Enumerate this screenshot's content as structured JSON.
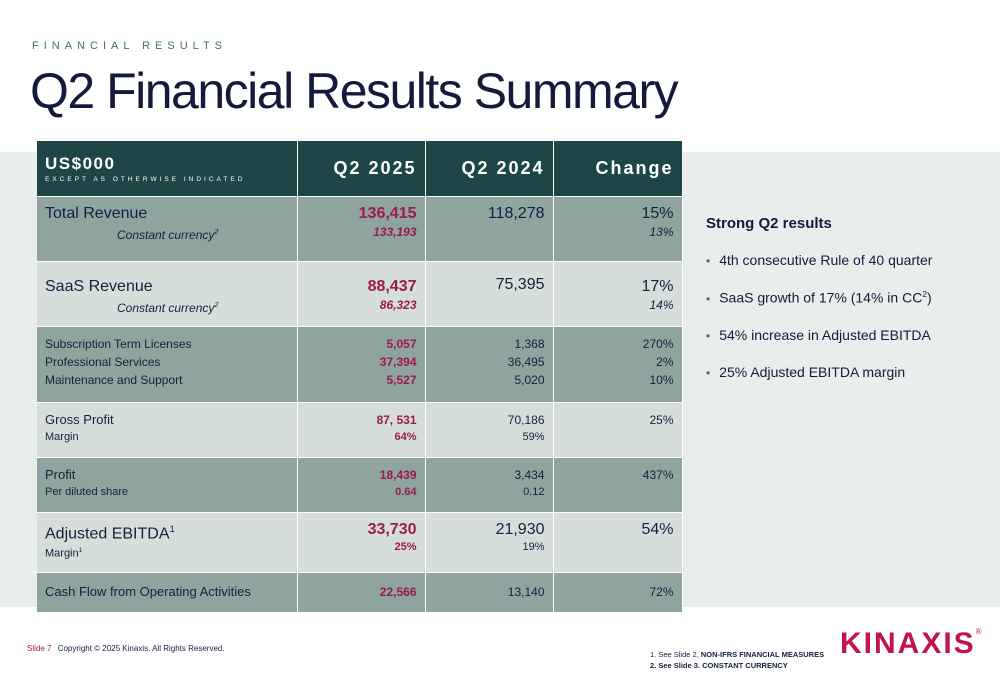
{
  "header": {
    "eyebrow": "FINANCIAL RESULTS",
    "title": "Q2 Financial Results Summary"
  },
  "table": {
    "head": {
      "label": "US$000",
      "sublabel": "EXCEPT AS OTHERWISE INDICATED",
      "col1": "Q2 2025",
      "col2": "Q2 2024",
      "col3": "Change"
    },
    "rows": [
      {
        "label": "Total Revenue",
        "sublabel": "Constant currency",
        "sub_sup": "2",
        "q2_2025": "136,415",
        "q2_2025_sub": "133,193",
        "q2_2024": "118,278",
        "change": "15%",
        "change_sub": "13%"
      },
      {
        "label": "SaaS Revenue",
        "sublabel": "Constant currency",
        "sub_sup": "2",
        "q2_2025": "88,437",
        "q2_2025_sub": "86,323",
        "q2_2024": "75,395",
        "change": "17%",
        "change_sub": "14%"
      },
      {
        "label_lines": [
          "Subscription Term Licenses",
          "Professional Services",
          "Maintenance and Support"
        ],
        "q2_2025": [
          "5,057",
          "37,394",
          "5,527"
        ],
        "q2_2024": [
          "1,368",
          "36,495",
          "5,020"
        ],
        "change": [
          "270%",
          "2%",
          "10%"
        ]
      },
      {
        "label": "Gross Profit",
        "sublabel": "Margin",
        "q2_2025": "87, 531",
        "q2_2025_sub": "64%",
        "q2_2024": "70,186",
        "q2_2024_sub": "59%",
        "change": "25%"
      },
      {
        "label": "Profit",
        "sublabel": "Per diluted share",
        "q2_2025": "18,439",
        "q2_2025_sub": "0.64",
        "q2_2024": "3,434",
        "q2_2024_sub": "0.12",
        "change": "437%"
      },
      {
        "label": "Adjusted EBITDA",
        "label_sup": "1",
        "sublabel": "Margin",
        "sub_sup": "1",
        "q2_2025": "33,730",
        "q2_2025_sub": "25%",
        "q2_2024": "21,930",
        "q2_2024_sub": "19%",
        "change": "54%"
      },
      {
        "label": "Cash Flow from Operating Activities",
        "q2_2025": "22,566",
        "q2_2024": "13,140",
        "change": "72%"
      }
    ]
  },
  "highlights": {
    "title": "Strong Q2 results",
    "bullet": "•",
    "items": [
      {
        "text": "4th consecutive Rule of 40 quarter"
      },
      {
        "text": "SaaS growth of 17% (14% in CC",
        "sup": "2",
        "after": ")"
      },
      {
        "text": "54% increase in Adjusted EBITDA"
      },
      {
        "text": "25% Adjusted EBITDA margin"
      }
    ]
  },
  "footer": {
    "slide": "Slide 7",
    "copyright": "Copyright © 2025 Kinaxis. All Rights Reserved.",
    "note1_prefix": "1.  See Slide 2, ",
    "note1_bold": "NON-IFRS FINANCIAL MEASURES",
    "note2": "2.  See Slide 3. CONSTANT CURRENCY",
    "logo": "KINAXIS",
    "logo_mark": "®"
  },
  "colors": {
    "header_bg": "#1e4646",
    "row_dark": "#8fa39f",
    "row_light": "#d6dedb",
    "accent": "#9c1a4e",
    "logo": "#c2124f"
  }
}
